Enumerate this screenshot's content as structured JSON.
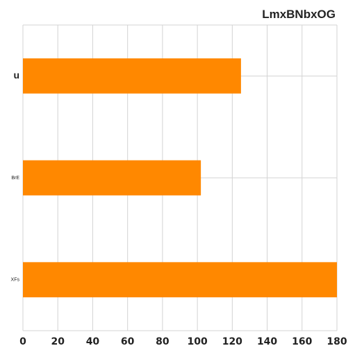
{
  "chart_data": {
    "type": "bar",
    "orientation": "horizontal",
    "title": "LmxBNbxOG",
    "xlabel": "",
    "ylabel": "",
    "categories": [
      "u",
      "BrE",
      "XFs"
    ],
    "values": [
      125,
      102,
      180
    ],
    "xlim": [
      0,
      180
    ],
    "xticks": [
      0,
      20,
      40,
      60,
      80,
      100,
      120,
      140,
      160,
      180
    ],
    "grid": true,
    "legend": "none",
    "colors": {
      "bar": "#ff8800",
      "grid": "#d3d3d3",
      "text": "#222222"
    }
  }
}
